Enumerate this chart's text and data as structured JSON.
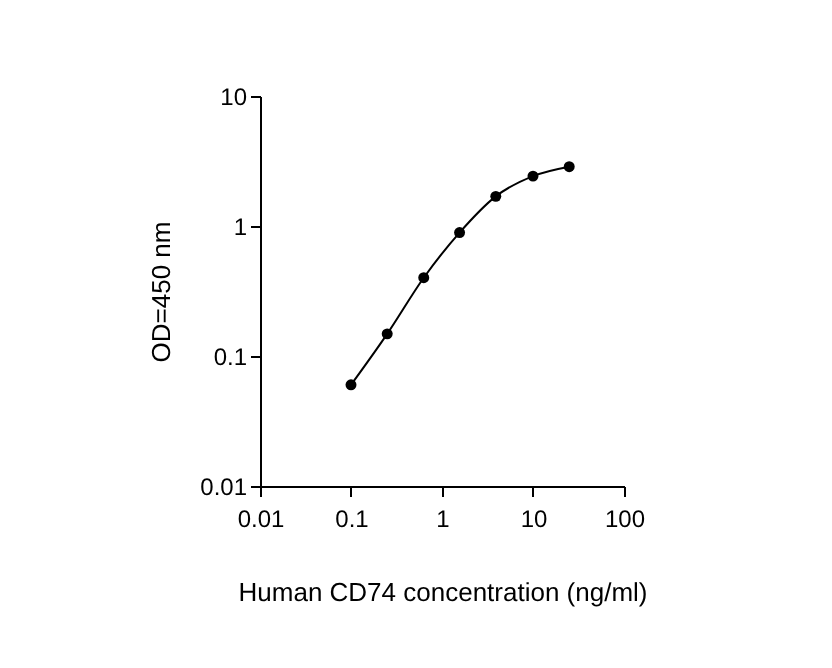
{
  "chart_data": {
    "type": "line",
    "xlabel": "Human CD74 concentration (ng/ml)",
    "ylabel": "OD=450 nm",
    "x": [
      0.1,
      0.25,
      0.63,
      1.56,
      3.9,
      10,
      25
    ],
    "series": [
      {
        "color": "#000000",
        "values": [
          0.06,
          0.148,
          0.4,
          0.89,
          1.69,
          2.42,
          2.86
        ]
      }
    ],
    "log": "xy",
    "xlim": [
      0.01,
      100
    ],
    "ylim": [
      0.01,
      10
    ],
    "xticks": [
      0.01,
      0.1,
      1,
      10,
      100
    ],
    "yticks": [
      0.01,
      0.1,
      1,
      10
    ],
    "marker": "circle",
    "line_style": "solid"
  }
}
